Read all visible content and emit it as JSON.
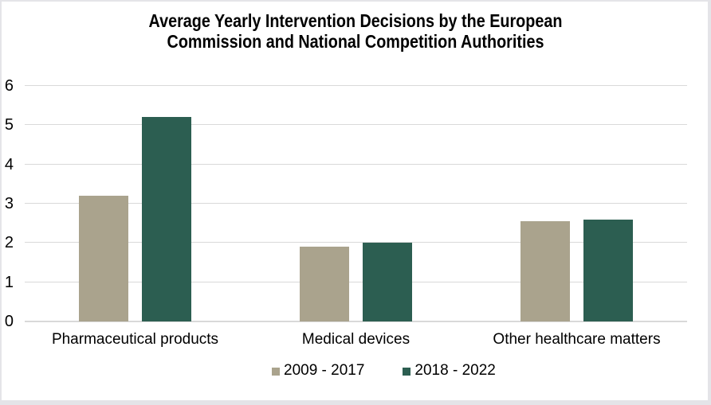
{
  "chart_data": {
    "type": "bar",
    "title": "Average Yearly Intervention Decisions by the European Commission and National Competition Authorities",
    "title_lines": [
      "Average Yearly Intervention Decisions by the European",
      "Commission and National Competition Authorities"
    ],
    "categories": [
      "Pharmaceutical products",
      "Medical devices",
      "Other healthcare matters"
    ],
    "series": [
      {
        "name": "2009 - 2017",
        "color": "#AAA38D",
        "values": [
          3.2,
          1.9,
          2.55
        ]
      },
      {
        "name": "2018 - 2022",
        "color": "#2C5E51",
        "values": [
          5.2,
          2.0,
          2.6
        ]
      }
    ],
    "xlabel": "",
    "ylabel": "",
    "ylim": [
      0,
      6
    ],
    "yticks": [
      0,
      1,
      2,
      3,
      4,
      5,
      6
    ],
    "grid": true,
    "legend_position": "bottom",
    "gridline_color": "#D9D9D9",
    "background_color": "#FFFFFF",
    "border_color": "#E4E4E8"
  }
}
